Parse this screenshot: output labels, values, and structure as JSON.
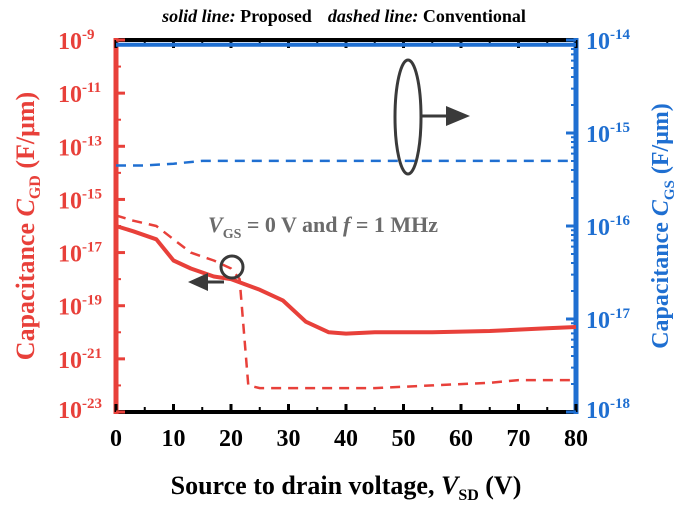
{
  "legend_note": {
    "solid_key": "solid line:",
    "solid_value": " Proposed",
    "dashed_key": "dashed line:",
    "dashed_value": " Conventional"
  },
  "annotation": {
    "v": "V",
    "gs": "GS",
    "rest": " = 0 V and ",
    "f": "f",
    "rest2": " = 1 MHz"
  },
  "colors": {
    "left_axis": "#e8403a",
    "right_axis": "#1f6fd1",
    "frame": "#000000",
    "annotation_text": "#6b6b6b",
    "markers": "#3a3a3a"
  },
  "chart_data": {
    "type": "line",
    "x_axis": {
      "label_main": "Source to drain voltage, ",
      "label_var": "V",
      "label_sub": "SD",
      "label_unit": " (V)",
      "range": [
        0,
        80
      ],
      "ticks": [
        0,
        10,
        20,
        30,
        40,
        50,
        60,
        70,
        80
      ],
      "tick_labels": [
        "0",
        "10",
        "20",
        "30",
        "40",
        "50",
        "60",
        "70",
        "80"
      ]
    },
    "y_left": {
      "label_main": "Capacitance ",
      "label_var": "C",
      "label_sub": "GD",
      "label_unit": " (F/μm)",
      "scale": "log",
      "range_exp": [
        -23,
        -9
      ],
      "tick_base": "10",
      "tick_exponents": [
        "-23",
        "-21",
        "-19",
        "-17",
        "-15",
        "-13",
        "-11",
        "-9"
      ]
    },
    "y_right": {
      "label_main": "Capacitance ",
      "label_var": "C",
      "label_sub": "GS",
      "label_unit": " (F/μm)",
      "scale": "log",
      "range_exp": [
        -18,
        -14
      ],
      "tick_base": "10",
      "tick_exponents": [
        "-18",
        "-17",
        "-16",
        "-15",
        "-14"
      ]
    },
    "series": [
      {
        "axis": "left",
        "style": "solid",
        "x": [
          0,
          3,
          7,
          10,
          13,
          17,
          20,
          25,
          29,
          33,
          37,
          40,
          45,
          55,
          65,
          75,
          80
        ],
        "y_exp": [
          -16.0,
          -16.2,
          -16.5,
          -17.3,
          -17.6,
          -17.9,
          -18.0,
          -18.4,
          -18.8,
          -19.6,
          -20.0,
          -20.05,
          -20.0,
          -20.0,
          -19.95,
          -19.85,
          -19.8
        ]
      },
      {
        "axis": "left",
        "style": "dashed",
        "x": [
          0,
          3,
          7,
          10,
          13,
          17,
          20,
          21.5,
          23,
          25,
          35,
          45,
          55,
          65,
          70,
          80
        ],
        "y_exp": [
          -15.6,
          -15.8,
          -16.0,
          -16.5,
          -17.0,
          -17.3,
          -17.6,
          -18.0,
          -22.0,
          -22.1,
          -22.1,
          -22.1,
          -22.0,
          -21.9,
          -21.8,
          -21.8
        ]
      },
      {
        "axis": "right",
        "style": "solid",
        "x": [
          0,
          80
        ],
        "y_exp": [
          -14.05,
          -14.05
        ]
      },
      {
        "axis": "right",
        "style": "dashed",
        "x": [
          0,
          5,
          10,
          15,
          20,
          40,
          60,
          80
        ],
        "y_exp": [
          -15.35,
          -15.35,
          -15.33,
          -15.3,
          -15.3,
          -15.3,
          -15.3,
          -15.3
        ]
      }
    ]
  }
}
